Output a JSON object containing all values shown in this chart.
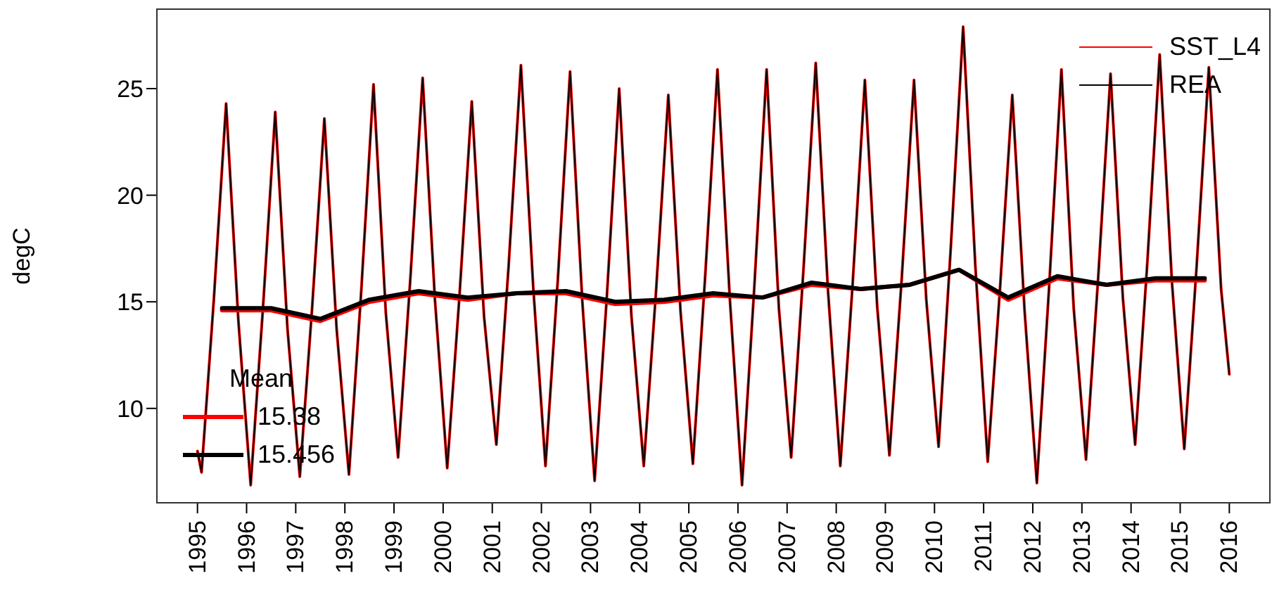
{
  "chart_data": {
    "type": "line",
    "ylabel": "degC",
    "legend": "top right",
    "legend_title": "Mean",
    "marker": "none",
    "line_style": "solid",
    "grid": false,
    "xlim": [
      1994.16,
      2016.84
    ],
    "xticks": [
      1995,
      1996,
      1997,
      1998,
      1999,
      2000,
      2001,
      2002,
      2003,
      2004,
      2005,
      2006,
      2007,
      2008,
      2009,
      2010,
      2011,
      2012,
      2013,
      2014,
      2015,
      2016
    ],
    "ylim": [
      5.54,
      28.76
    ],
    "yticks": [
      10,
      15,
      20,
      25
    ],
    "series": [
      {
        "name": "SST_L4",
        "color": "#ff0000",
        "x": [
          1995,
          1995.083,
          1995.333,
          1995.583,
          1995.833,
          1996.083,
          1996.333,
          1996.583,
          1996.833,
          1997.083,
          1997.333,
          1997.583,
          1997.833,
          1998.083,
          1998.333,
          1998.583,
          1998.833,
          1999.083,
          1999.333,
          1999.583,
          1999.833,
          2000.083,
          2000.333,
          2000.583,
          2000.833,
          2001.083,
          2001.333,
          2001.583,
          2001.833,
          2002.083,
          2002.333,
          2002.583,
          2002.833,
          2003.083,
          2003.333,
          2003.583,
          2003.833,
          2004.083,
          2004.333,
          2004.583,
          2004.833,
          2005.083,
          2005.333,
          2005.583,
          2005.833,
          2006.083,
          2006.333,
          2006.583,
          2006.833,
          2007.083,
          2007.333,
          2007.583,
          2007.833,
          2008.083,
          2008.333,
          2008.583,
          2008.833,
          2009.083,
          2009.333,
          2009.583,
          2009.833,
          2010.083,
          2010.333,
          2010.583,
          2010.833,
          2011.083,
          2011.333,
          2011.583,
          2011.833,
          2012.083,
          2012.333,
          2012.583,
          2012.833,
          2013.083,
          2013.333,
          2013.583,
          2013.833,
          2014.083,
          2014.333,
          2014.583,
          2014.833,
          2015.083,
          2015.333,
          2015.583,
          2015.833,
          2016
        ],
        "values": [
          8.0,
          7.0,
          15.1,
          24.3,
          14.1,
          6.4,
          14.7,
          23.9,
          13.7,
          6.8,
          14.7,
          23.6,
          13.7,
          6.9,
          15.5,
          25.2,
          14.5,
          7.7,
          16.1,
          25.5,
          15.1,
          7.2,
          15.3,
          24.4,
          14.3,
          8.3,
          16.7,
          26.1,
          15.7,
          7.3,
          16.0,
          25.8,
          15.0,
          6.6,
          15.3,
          25.0,
          14.3,
          7.3,
          15.5,
          24.7,
          14.5,
          7.4,
          16.2,
          25.9,
          15.2,
          6.4,
          15.7,
          25.9,
          14.7,
          7.7,
          16.5,
          26.2,
          15.5,
          7.3,
          15.8,
          25.4,
          14.8,
          7.8,
          16.1,
          25.4,
          15.1,
          8.2,
          17.6,
          27.9,
          16.6,
          7.5,
          15.6,
          24.7,
          14.6,
          6.5,
          15.7,
          25.9,
          14.7,
          7.6,
          16.2,
          25.7,
          15.2,
          8.3,
          16.9,
          26.6,
          15.9,
          8.1,
          16.6,
          26.0,
          15.6,
          11.6
        ]
      },
      {
        "name": "REA",
        "color": "#000000",
        "x": [
          1995,
          1995.083,
          1995.333,
          1995.583,
          1995.833,
          1996.083,
          1996.333,
          1996.583,
          1996.833,
          1997.083,
          1997.333,
          1997.583,
          1997.833,
          1998.083,
          1998.333,
          1998.583,
          1998.833,
          1999.083,
          1999.333,
          1999.583,
          1999.833,
          2000.083,
          2000.333,
          2000.583,
          2000.833,
          2001.083,
          2001.333,
          2001.583,
          2001.833,
          2002.083,
          2002.333,
          2002.583,
          2002.833,
          2003.083,
          2003.333,
          2003.583,
          2003.833,
          2004.083,
          2004.333,
          2004.583,
          2004.833,
          2005.083,
          2005.333,
          2005.583,
          2005.833,
          2006.083,
          2006.333,
          2006.583,
          2006.833,
          2007.083,
          2007.333,
          2007.583,
          2007.833,
          2008.083,
          2008.333,
          2008.583,
          2008.833,
          2009.083,
          2009.333,
          2009.583,
          2009.833,
          2010.083,
          2010.333,
          2010.583,
          2010.833,
          2011.083,
          2011.333,
          2011.583,
          2011.833,
          2012.083,
          2012.333,
          2012.583,
          2012.833,
          2013.083,
          2013.333,
          2013.583,
          2013.833,
          2014.083,
          2014.333,
          2014.583,
          2014.833,
          2015.083,
          2015.333,
          2015.583,
          2015.833,
          2016
        ],
        "values": [
          8.0,
          7.0,
          15.1,
          24.3,
          14.1,
          6.4,
          14.7,
          23.9,
          13.7,
          6.8,
          14.7,
          23.6,
          13.7,
          6.9,
          15.5,
          25.2,
          14.5,
          7.7,
          16.1,
          25.5,
          15.1,
          7.2,
          15.3,
          24.4,
          14.3,
          8.3,
          16.7,
          26.1,
          15.7,
          7.3,
          16.0,
          25.8,
          15.0,
          6.6,
          15.3,
          25.0,
          14.3,
          7.3,
          15.5,
          24.7,
          14.5,
          7.4,
          16.2,
          25.9,
          15.2,
          6.4,
          15.7,
          25.9,
          14.7,
          7.7,
          16.5,
          26.2,
          15.5,
          7.3,
          15.8,
          25.4,
          14.8,
          7.8,
          16.1,
          25.4,
          15.1,
          8.2,
          17.6,
          27.9,
          16.6,
          7.5,
          15.6,
          24.7,
          14.6,
          6.5,
          15.7,
          25.9,
          14.7,
          7.6,
          16.2,
          25.7,
          15.2,
          8.3,
          16.9,
          26.6,
          15.9,
          8.1,
          16.6,
          26.0,
          15.6,
          11.6
        ]
      },
      {
        "name": "15.38",
        "color": "#ff0000",
        "x": [
          1995.5,
          1996.5,
          1997.5,
          1998.5,
          1999.5,
          2000.5,
          2001.5,
          2002.5,
          2003.5,
          2004.5,
          2005.5,
          2006.5,
          2007.5,
          2008.5,
          2009.5,
          2010.5,
          2011.5,
          2012.5,
          2013.5,
          2014.5,
          2015.5
        ],
        "values": [
          14.6,
          14.6,
          14.1,
          15.0,
          15.4,
          15.1,
          15.4,
          15.4,
          14.9,
          15.0,
          15.3,
          15.2,
          15.8,
          15.6,
          15.8,
          16.5,
          15.1,
          16.1,
          15.8,
          16.0,
          16.0
        ]
      },
      {
        "name": "15.456",
        "color": "#000000",
        "x": [
          1995.5,
          1996.5,
          1997.5,
          1998.5,
          1999.5,
          2000.5,
          2001.5,
          2002.5,
          2003.5,
          2004.5,
          2005.5,
          2006.5,
          2007.5,
          2008.5,
          2009.5,
          2010.5,
          2011.5,
          2012.5,
          2013.5,
          2014.5,
          2015.5
        ],
        "values": [
          14.7,
          14.7,
          14.2,
          15.1,
          15.5,
          15.2,
          15.4,
          15.5,
          15.0,
          15.1,
          15.4,
          15.2,
          15.9,
          15.6,
          15.8,
          16.5,
          15.2,
          16.2,
          15.8,
          16.1,
          16.1
        ]
      }
    ]
  }
}
